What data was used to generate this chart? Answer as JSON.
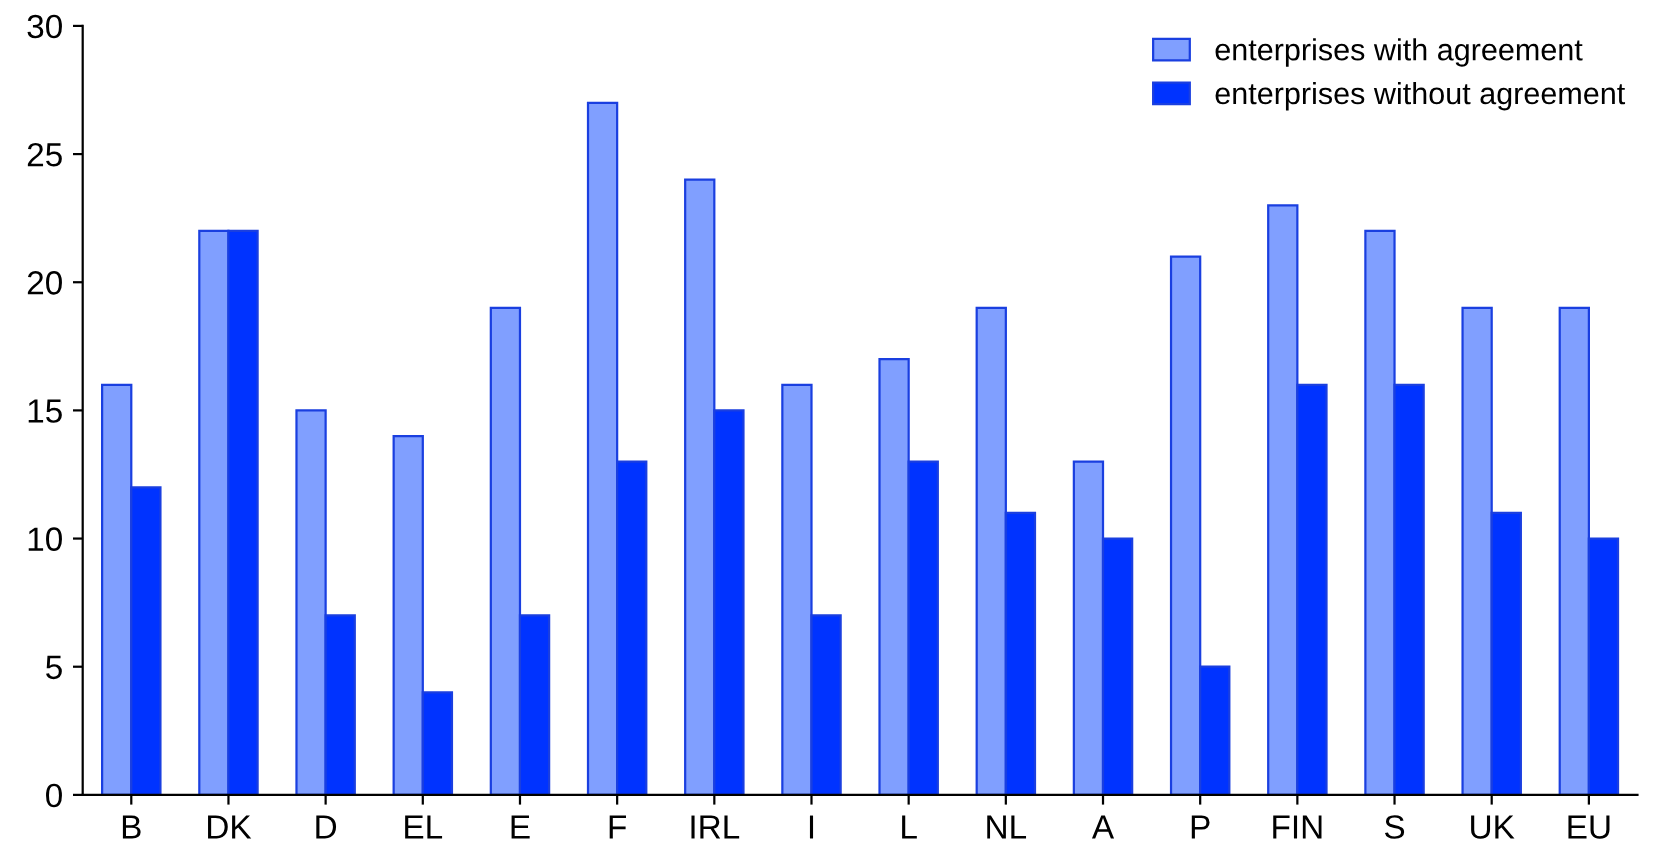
{
  "chart_data": {
    "type": "bar",
    "categories": [
      "B",
      "DK",
      "D",
      "EL",
      "E",
      "F",
      "IRL",
      "I",
      "L",
      "NL",
      "A",
      "P",
      "FIN",
      "S",
      "UK",
      "EU"
    ],
    "series": [
      {
        "name": "enterprises with agreement",
        "color": "#809fff",
        "values": [
          16,
          22,
          15,
          14,
          19,
          27,
          24,
          16,
          17,
          19,
          13,
          21,
          23,
          22,
          19,
          19
        ]
      },
      {
        "name": "enterprises without agreement",
        "color": "#0033ff",
        "values": [
          12,
          22,
          7,
          4,
          7,
          13,
          15,
          7,
          13,
          11,
          10,
          5,
          16,
          16,
          11,
          10
        ]
      }
    ],
    "ylim": [
      0,
      30
    ],
    "yticks": [
      0,
      5,
      10,
      15,
      20,
      25,
      30
    ],
    "grid": false,
    "legend": "top right"
  }
}
